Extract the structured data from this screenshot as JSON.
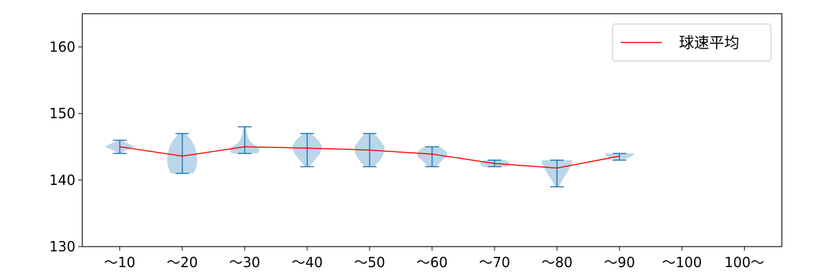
{
  "chart_data": {
    "type": "violin",
    "categories": [
      "～10",
      "～20",
      "～30",
      "～40",
      "～50",
      "～60",
      "～70",
      "～80",
      "～90",
      "～100",
      "100～"
    ],
    "ylim": [
      130,
      165
    ],
    "yticks": [
      130,
      140,
      150,
      160
    ],
    "grid": false,
    "legend": {
      "placement": "top-right",
      "entries": [
        "球速平均"
      ]
    },
    "series": [
      {
        "name": "球速平均",
        "type": "line",
        "color": "#ff0000",
        "values": [
          145.0,
          143.6,
          145.0,
          144.8,
          144.5,
          143.9,
          142.5,
          141.8,
          143.6,
          null,
          null
        ]
      }
    ],
    "violins": [
      {
        "min": 144,
        "max": 146,
        "profile": [
          [
            144.0,
            0.1
          ],
          [
            144.5,
            0.45
          ],
          [
            145.0,
            1.0
          ],
          [
            145.5,
            0.55
          ],
          [
            146.0,
            0.1
          ]
        ]
      },
      {
        "min": 141,
        "max": 147,
        "profile": [
          [
            141.0,
            0.75
          ],
          [
            142.0,
            0.95
          ],
          [
            143.0,
            1.0
          ],
          [
            144.0,
            0.95
          ],
          [
            145.0,
            0.85
          ],
          [
            146.0,
            0.6
          ],
          [
            147.0,
            0.25
          ]
        ]
      },
      {
        "min": 144,
        "max": 148,
        "profile": [
          [
            144.0,
            0.85
          ],
          [
            144.5,
            1.0
          ],
          [
            145.0,
            0.85
          ],
          [
            145.5,
            0.5
          ],
          [
            146.0,
            0.3
          ],
          [
            147.0,
            0.15
          ],
          [
            148.0,
            0.08
          ]
        ]
      },
      {
        "min": 142,
        "max": 147,
        "profile": [
          [
            142.0,
            0.15
          ],
          [
            143.0,
            0.5
          ],
          [
            144.0,
            0.85
          ],
          [
            145.0,
            1.0
          ],
          [
            146.0,
            0.75
          ],
          [
            147.0,
            0.25
          ]
        ]
      },
      {
        "min": 142,
        "max": 147,
        "profile": [
          [
            142.0,
            0.3
          ],
          [
            143.0,
            0.7
          ],
          [
            144.0,
            0.95
          ],
          [
            145.0,
            1.0
          ],
          [
            146.0,
            0.7
          ],
          [
            147.0,
            0.3
          ]
        ]
      },
      {
        "min": 142,
        "max": 145,
        "profile": [
          [
            142.0,
            0.3
          ],
          [
            142.5,
            0.45
          ],
          [
            143.0,
            0.7
          ],
          [
            143.5,
            0.95
          ],
          [
            144.0,
            1.0
          ],
          [
            144.5,
            0.85
          ],
          [
            145.0,
            0.5
          ]
        ]
      },
      {
        "min": 142,
        "max": 143,
        "profile": [
          [
            142.0,
            0.8
          ],
          [
            142.3,
            0.9
          ],
          [
            142.5,
            1.0
          ],
          [
            142.8,
            0.9
          ],
          [
            143.0,
            0.7
          ]
        ]
      },
      {
        "min": 139,
        "max": 143,
        "profile": [
          [
            139.0,
            0.15
          ],
          [
            140.0,
            0.35
          ],
          [
            141.0,
            0.65
          ],
          [
            142.0,
            0.9
          ],
          [
            142.5,
            1.0
          ],
          [
            143.0,
            1.0
          ]
        ]
      },
      {
        "min": 143,
        "max": 144,
        "profile": [
          [
            143.0,
            0.3
          ],
          [
            143.3,
            0.55
          ],
          [
            143.6,
            0.85
          ],
          [
            144.0,
            1.0
          ]
        ]
      },
      null,
      null
    ],
    "colors": {
      "violin_fill": "#1f77b4",
      "violin_edge": "#1f77b4",
      "mean_line": "#ff0000"
    }
  }
}
